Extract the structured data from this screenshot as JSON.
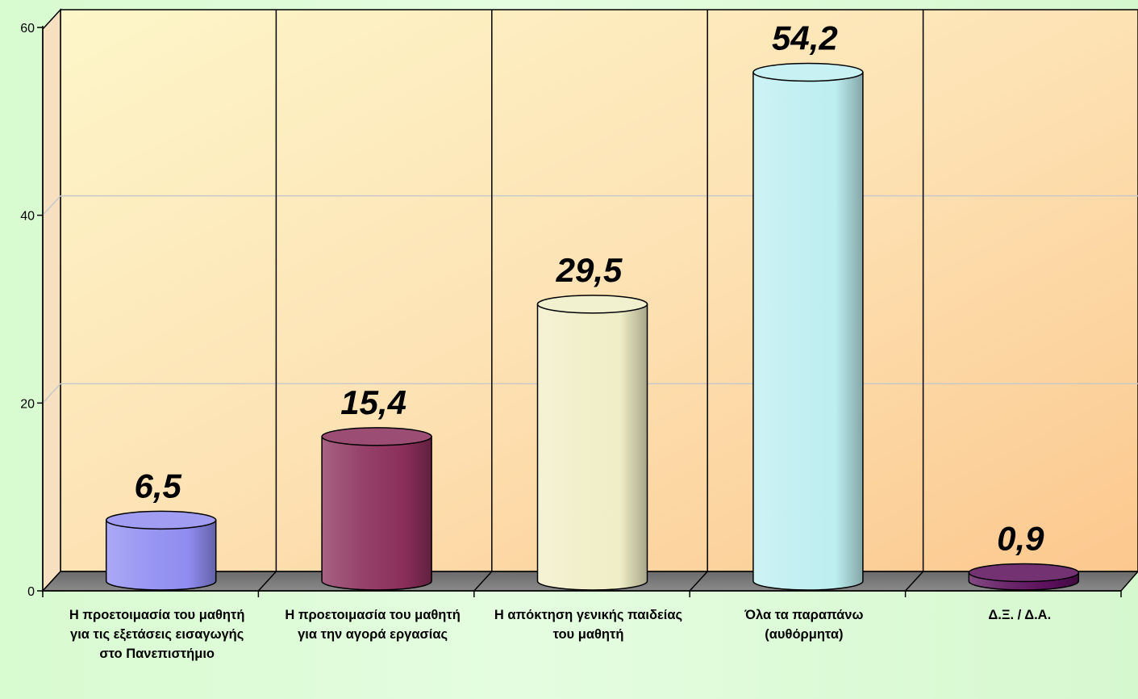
{
  "chart_data": {
    "type": "bar",
    "categories": [
      "Η προετοιμασία του μαθητή για τις εξετάσεις εισαγωγής στο Πανεπιστήμιο",
      "Η προετοιμασία του μαθητή για την αγορά εργασίας",
      "Η απόκτηση γενικής παιδείας του μαθητή",
      "Όλα τα παραπάνω (αυθόρμητα)",
      "Δ.Ξ. / Δ.Α."
    ],
    "values": [
      6.5,
      15.4,
      29.5,
      54.2,
      0.9
    ],
    "value_labels": [
      "6,5",
      "15,4",
      "29,5",
      "54,2",
      "0,9"
    ],
    "bar_colors": [
      "#8f8cf0",
      "#8a2e5a",
      "#f0eec6",
      "#bdeef0",
      "#5a0f5a"
    ],
    "ylim": [
      0,
      60
    ],
    "yticks": [
      "0",
      "20",
      "40",
      "60"
    ],
    "grid": true,
    "legend": "none",
    "title": "",
    "xlabel": "",
    "ylabel": ""
  }
}
